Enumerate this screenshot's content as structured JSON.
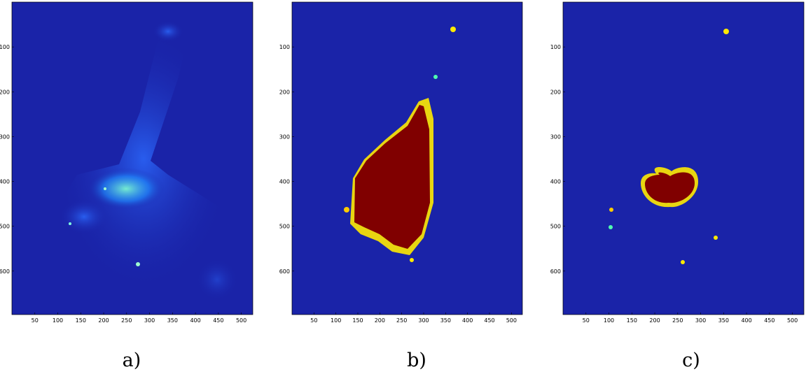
{
  "figure": {
    "colormap": "jet",
    "background_color": "#1a23a8",
    "axes": {
      "x_ticks": [
        "50",
        "100",
        "150",
        "200",
        "250",
        "300",
        "350",
        "400",
        "450",
        "500"
      ],
      "y_ticks": [
        "100",
        "200",
        "300",
        "400",
        "500",
        "600"
      ]
    },
    "panels": [
      {
        "id": "a",
        "caption": "a)",
        "content": "raw fluorescence intensity of cell with elongated neck"
      },
      {
        "id": "b",
        "caption": "b)",
        "content": "saturated segmentation of whole cell body"
      },
      {
        "id": "c",
        "caption": "c)",
        "content": "saturated segmentation of nucleus region"
      }
    ]
  }
}
